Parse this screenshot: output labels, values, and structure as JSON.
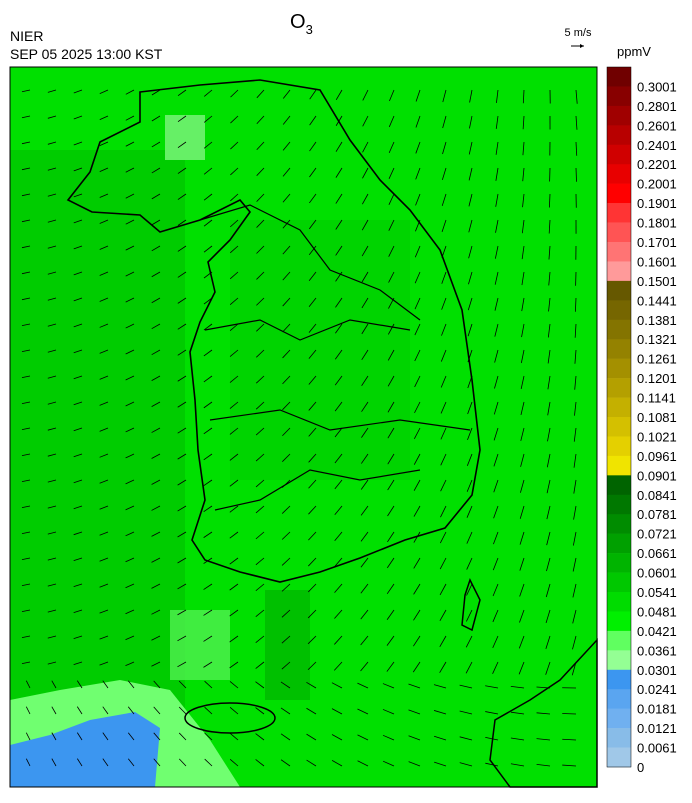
{
  "header": {
    "agency": "NIER",
    "datetime": "SEP 05 2025 13:00 KST",
    "title": "O",
    "title_subscript": "3"
  },
  "wind_scale": {
    "label": "5 m/s"
  },
  "legend": {
    "unit": "ppmV",
    "bins": [
      {
        "label": "0.3001",
        "color": "#700000"
      },
      {
        "label": "0.2801",
        "color": "#880000"
      },
      {
        "label": "0.2601",
        "color": "#a00000"
      },
      {
        "label": "0.2401",
        "color": "#b80000"
      },
      {
        "label": "0.2201",
        "color": "#d00000"
      },
      {
        "label": "0.2001",
        "color": "#e80000"
      },
      {
        "label": "0.1901",
        "color": "#ff0000"
      },
      {
        "label": "0.1801",
        "color": "#ff3434"
      },
      {
        "label": "0.1701",
        "color": "#ff5454"
      },
      {
        "label": "0.1601",
        "color": "#ff7474"
      },
      {
        "label": "0.1501",
        "color": "#ff9a9a"
      },
      {
        "label": "0.1441",
        "color": "#665800"
      },
      {
        "label": "0.1381",
        "color": "#766600"
      },
      {
        "label": "0.1321",
        "color": "#847400"
      },
      {
        "label": "0.1261",
        "color": "#948200"
      },
      {
        "label": "0.1201",
        "color": "#a49000"
      },
      {
        "label": "0.1141",
        "color": "#b4a000"
      },
      {
        "label": "0.1081",
        "color": "#c4b000"
      },
      {
        "label": "0.1021",
        "color": "#d4c000"
      },
      {
        "label": "0.0961",
        "color": "#e4d000"
      },
      {
        "label": "0.0901",
        "color": "#f0e400"
      },
      {
        "label": "0.0841",
        "color": "#006400"
      },
      {
        "label": "0.0781",
        "color": "#007800"
      },
      {
        "label": "0.0721",
        "color": "#008c00"
      },
      {
        "label": "0.0661",
        "color": "#00a000"
      },
      {
        "label": "0.0601",
        "color": "#00b400"
      },
      {
        "label": "0.0541",
        "color": "#00c800"
      },
      {
        "label": "0.0481",
        "color": "#00dc00"
      },
      {
        "label": "0.0421",
        "color": "#00f000"
      },
      {
        "label": "0.0361",
        "color": "#60ff60"
      },
      {
        "label": "0.0301",
        "color": "#94ff94"
      },
      {
        "label": "0.0241",
        "color": "#3c96f0"
      },
      {
        "label": "0.0181",
        "color": "#5aa5f0"
      },
      {
        "label": "0.0121",
        "color": "#70b0f0"
      },
      {
        "label": "0.0061",
        "color": "#88bce8"
      },
      {
        "label": "0",
        "color": "#a0c8e8"
      }
    ]
  }
}
